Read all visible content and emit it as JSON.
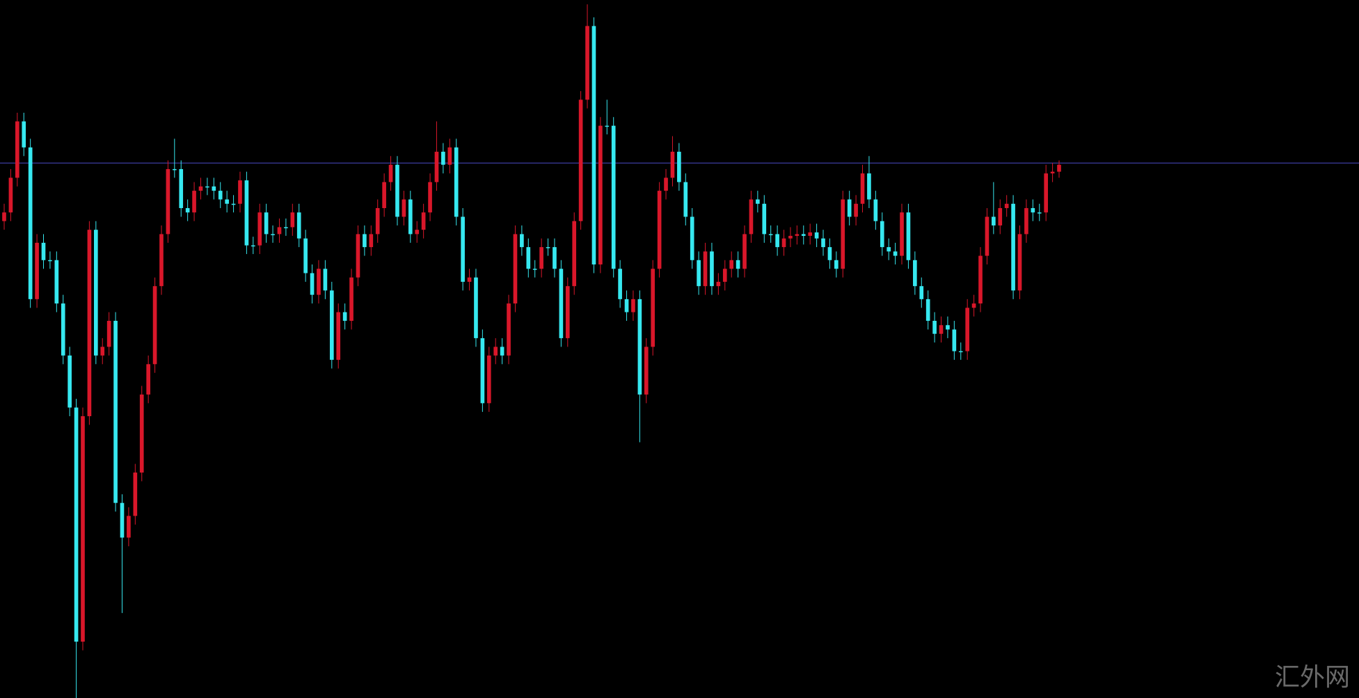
{
  "chart_data": {
    "type": "candlestick",
    "ylim": [
      0,
      805
    ],
    "up_color": "#d9172a",
    "down_color": "#36e8f0",
    "hline": 617,
    "hline_color": "#4a4ac8",
    "watermark": "汇外网",
    "open": [
      550,
      560,
      600,
      665,
      635,
      460,
      525,
      505,
      505,
      455,
      395,
      335,
      65,
      325,
      540,
      395,
      405,
      435,
      225,
      185,
      210,
      260,
      350,
      385,
      475,
      535,
      610,
      610,
      565,
      560,
      585,
      590,
      590,
      585,
      575,
      570,
      570,
      597,
      522,
      522,
      560,
      535,
      535,
      543,
      543,
      560,
      530,
      490,
      465,
      495,
      470,
      390,
      445,
      435,
      485,
      535,
      520,
      535,
      565,
      595,
      615,
      555,
      575,
      535,
      540,
      560,
      595,
      630,
      615,
      635,
      555,
      480,
      485,
      415,
      340,
      395,
      405,
      395,
      455,
      535,
      520,
      495,
      495,
      520,
      520,
      495,
      415,
      475,
      550,
      690,
      775,
      500,
      660,
      660,
      495,
      460,
      445,
      460,
      350,
      405,
      495,
      585,
      600,
      630,
      595,
      555,
      505,
      475,
      515,
      475,
      480,
      495,
      505,
      495,
      535,
      575,
      570,
      535,
      535,
      520,
      530,
      533,
      535,
      533,
      537,
      530,
      520,
      505,
      495,
      575,
      555,
      570,
      605,
      575,
      550,
      520,
      515,
      510,
      560,
      505,
      475,
      460,
      435,
      420,
      430,
      425,
      400,
      400,
      450,
      455,
      510,
      555,
      545,
      565,
      570,
      470,
      535,
      565,
      560,
      560,
      605,
      607
    ],
    "high": [
      570,
      610,
      675,
      675,
      645,
      535,
      535,
      515,
      515,
      465,
      405,
      345,
      335,
      550,
      550,
      415,
      445,
      445,
      235,
      220,
      270,
      360,
      395,
      485,
      545,
      620,
      645,
      620,
      575,
      595,
      600,
      600,
      600,
      595,
      585,
      580,
      607,
      607,
      532,
      570,
      570,
      545,
      553,
      553,
      570,
      570,
      540,
      500,
      505,
      505,
      480,
      455,
      455,
      495,
      545,
      545,
      545,
      575,
      605,
      625,
      625,
      585,
      585,
      550,
      570,
      605,
      665,
      640,
      645,
      645,
      565,
      495,
      495,
      425,
      405,
      415,
      415,
      465,
      545,
      545,
      530,
      505,
      530,
      530,
      530,
      505,
      485,
      560,
      700,
      800,
      785,
      670,
      690,
      670,
      505,
      470,
      470,
      470,
      415,
      505,
      595,
      610,
      648,
      640,
      605,
      565,
      515,
      525,
      525,
      490,
      505,
      515,
      515,
      545,
      585,
      585,
      580,
      545,
      545,
      540,
      543,
      545,
      545,
      547,
      547,
      540,
      530,
      515,
      585,
      585,
      580,
      615,
      625,
      585,
      560,
      530,
      525,
      570,
      570,
      515,
      485,
      470,
      445,
      440,
      440,
      435,
      410,
      460,
      465,
      520,
      565,
      595,
      575,
      580,
      580,
      545,
      575,
      575,
      570,
      615,
      617,
      620
    ],
    "low": [
      540,
      550,
      590,
      625,
      450,
      450,
      495,
      495,
      445,
      385,
      325,
      0,
      55,
      315,
      385,
      385,
      395,
      215,
      98,
      175,
      200,
      250,
      340,
      375,
      465,
      525,
      600,
      555,
      550,
      550,
      575,
      580,
      575,
      565,
      560,
      560,
      560,
      512,
      512,
      512,
      525,
      525,
      525,
      533,
      533,
      520,
      480,
      455,
      455,
      460,
      380,
      380,
      425,
      425,
      475,
      510,
      510,
      525,
      555,
      585,
      545,
      545,
      525,
      525,
      530,
      550,
      585,
      605,
      605,
      545,
      470,
      470,
      405,
      330,
      330,
      385,
      385,
      385,
      445,
      510,
      485,
      485,
      485,
      510,
      485,
      405,
      405,
      465,
      540,
      680,
      490,
      490,
      650,
      485,
      450,
      435,
      435,
      295,
      340,
      395,
      485,
      575,
      590,
      585,
      545,
      495,
      465,
      465,
      465,
      465,
      470,
      485,
      485,
      485,
      525,
      560,
      525,
      525,
      510,
      510,
      520,
      523,
      523,
      523,
      520,
      510,
      495,
      485,
      485,
      545,
      545,
      560,
      565,
      540,
      510,
      505,
      500,
      500,
      495,
      465,
      450,
      425,
      410,
      410,
      415,
      390,
      390,
      390,
      440,
      445,
      500,
      535,
      535,
      555,
      460,
      460,
      525,
      550,
      550,
      550,
      595,
      600
    ],
    "close": [
      560,
      600,
      665,
      635,
      460,
      525,
      505,
      505,
      455,
      395,
      335,
      65,
      325,
      540,
      395,
      405,
      435,
      225,
      185,
      210,
      260,
      350,
      385,
      475,
      535,
      610,
      610,
      565,
      560,
      585,
      590,
      590,
      585,
      575,
      570,
      570,
      597,
      522,
      522,
      560,
      535,
      535,
      543,
      543,
      560,
      530,
      490,
      465,
      495,
      470,
      390,
      445,
      435,
      485,
      535,
      520,
      535,
      565,
      595,
      615,
      555,
      575,
      535,
      540,
      560,
      595,
      630,
      615,
      635,
      555,
      480,
      485,
      415,
      340,
      395,
      405,
      395,
      455,
      535,
      520,
      495,
      495,
      520,
      520,
      495,
      415,
      475,
      550,
      690,
      775,
      500,
      660,
      660,
      495,
      460,
      445,
      460,
      350,
      405,
      495,
      585,
      600,
      630,
      595,
      555,
      505,
      475,
      515,
      475,
      480,
      495,
      505,
      495,
      535,
      575,
      570,
      535,
      535,
      520,
      530,
      533,
      535,
      533,
      537,
      530,
      520,
      505,
      495,
      575,
      555,
      570,
      605,
      575,
      550,
      520,
      515,
      510,
      560,
      505,
      475,
      460,
      435,
      420,
      430,
      425,
      400,
      400,
      450,
      455,
      510,
      555,
      545,
      565,
      570,
      470,
      535,
      565,
      560,
      560,
      605,
      607,
      615
    ]
  }
}
